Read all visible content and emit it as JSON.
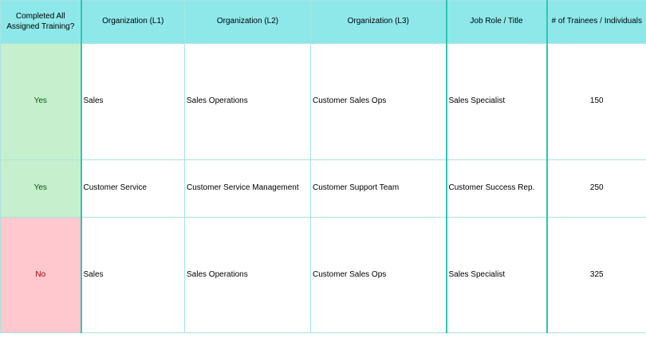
{
  "columns": [
    "Completed All Assigned Training?",
    "Organization (L1)",
    "Organization (L2)",
    "Organization (L3)",
    "Job Role / Title",
    "# of Trainees / Individuals"
  ],
  "rows": [
    {
      "completed": "Yes",
      "org_l1": "Sales",
      "org_l2": "Sales Operations",
      "org_l3": "Customer Sales Ops",
      "role": "Sales Specialist",
      "trainees": "150"
    },
    {
      "completed": "Yes",
      "org_l1": "Customer Service",
      "org_l2": "Customer Service Management",
      "org_l3": "Customer Support Team",
      "role": "Customer Success Rep.",
      "trainees": "250"
    },
    {
      "completed": "No",
      "org_l1": "Sales",
      "org_l2": "Sales Operations",
      "org_l3": "Customer Sales Ops",
      "role": "Sales Specialist",
      "trainees": "325"
    }
  ],
  "colors": {
    "header_bg": "#8ee8ea",
    "yes_bg": "#c6efce",
    "yes_text": "#006100",
    "no_bg": "#ffc7ce",
    "no_text": "#9c0006",
    "grid": "#a8e4e0"
  }
}
